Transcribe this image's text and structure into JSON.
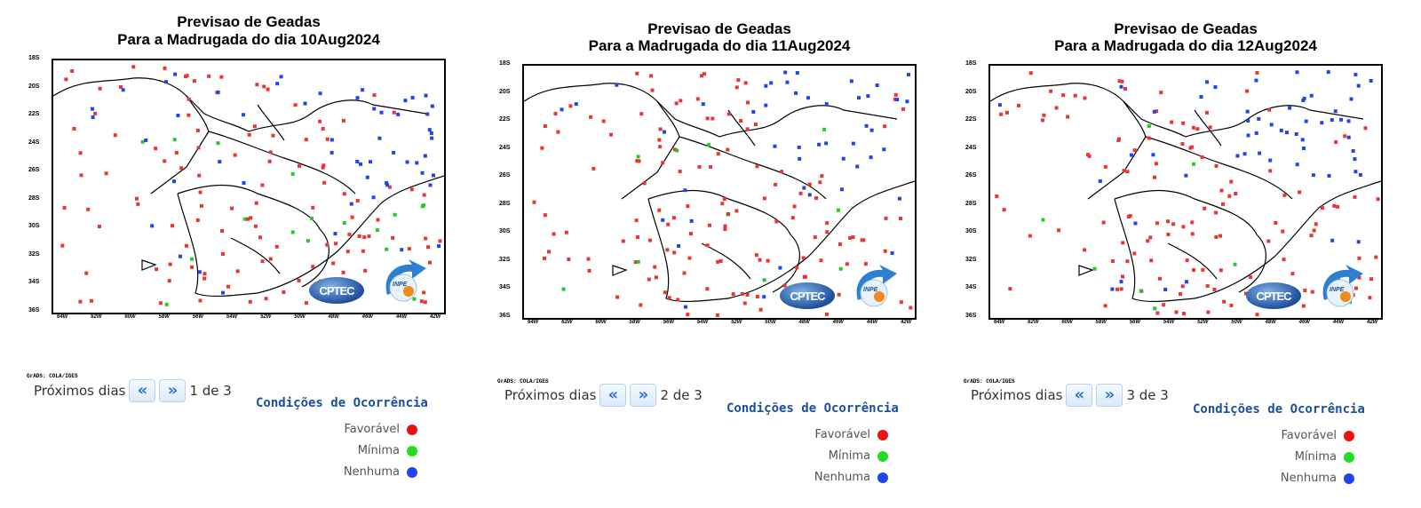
{
  "panels": [
    {
      "title_line1": "Previsao  de  Geadas",
      "title_line2": "Para a Madrugada do dia 10Aug2024",
      "nav_label": "Próximos dias",
      "prev_icon": "«",
      "next_icon": "»",
      "page": "1 de 3"
    },
    {
      "title_line1": "Previsao  de  Geadas",
      "title_line2": "Para a Madrugada do dia 11Aug2024",
      "nav_label": "Próximos dias",
      "prev_icon": "«",
      "next_icon": "»",
      "page": "2 de 3"
    },
    {
      "title_line1": "Previsao  de  Geadas",
      "title_line2": "Para a Madrugada do dia 12Aug2024",
      "nav_label": "Próximos dias",
      "prev_icon": "«",
      "next_icon": "»",
      "page": "3 de 3"
    }
  ],
  "axis": {
    "y_labels": [
      "18S",
      "20S",
      "22S",
      "24S",
      "26S",
      "28S",
      "30S",
      "32S",
      "34S",
      "36S"
    ],
    "x_labels": [
      "64W",
      "62W",
      "60W",
      "58W",
      "56W",
      "54W",
      "52W",
      "50W",
      "48W",
      "46W",
      "44W",
      "42W"
    ],
    "grads_label": "GrADS: COLA/IGES"
  },
  "logos": {
    "cptec": "CPTEC",
    "inpe": "INPE"
  },
  "legend": {
    "title": "Condições de Ocorrência",
    "items": [
      {
        "label": "Favorável",
        "color": "#ee1111"
      },
      {
        "label": "Mínima",
        "color": "#22dd22"
      },
      {
        "label": "Nenhuma",
        "color": "#2244ee"
      }
    ]
  },
  "colors": {
    "favoravel": "#ee3333",
    "minima": "#22cc22",
    "nenhuma": "#2244ee",
    "nav_accent": "#2c74c9",
    "legend_title": "#1a4fa0"
  }
}
